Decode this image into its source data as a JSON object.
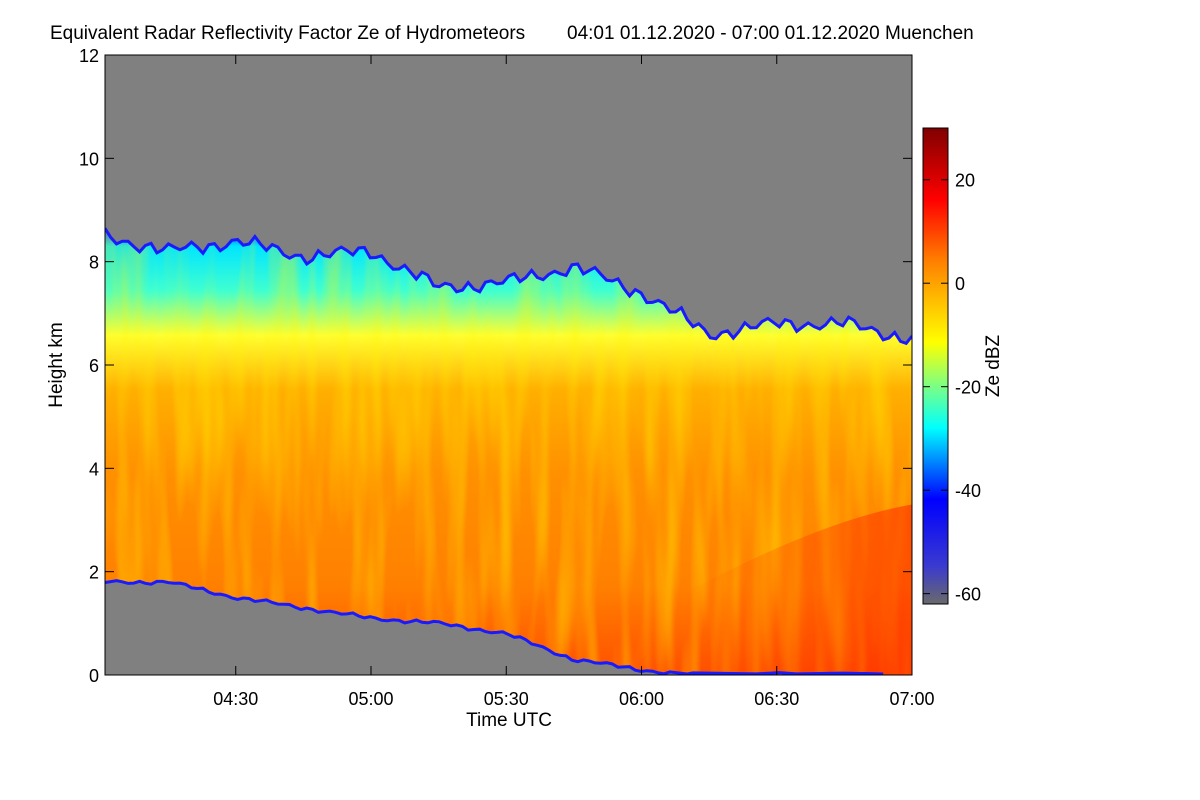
{
  "chart_data": {
    "type": "heatmap",
    "title": "Equivalent Radar Reflectivity Factor Ze of Hydrometeors",
    "subtitle": "04:01 01.12.2020 - 07:00 01.12.2020 Muenchen",
    "xlabel": "Time UTC",
    "ylabel": "Height km",
    "colorbar_label": "Ze dBZ",
    "xlim": [
      "04:01",
      "07:00"
    ],
    "ylim": [
      0,
      12
    ],
    "xticks": [
      "04:30",
      "05:00",
      "05:30",
      "06:00",
      "06:30",
      "07:00"
    ],
    "yticks": [
      "0",
      "2",
      "4",
      "6",
      "8",
      "10",
      "12"
    ],
    "colorbar_range": [
      -62,
      30
    ],
    "colorbar_ticks": [
      "-60",
      "-40",
      "-20",
      "0",
      "20"
    ],
    "grid": false,
    "background_color": "#808080",
    "colormap": [
      "#6a6a6a",
      "#0000ff",
      "#00ffff",
      "#ffff00",
      "#ff8000",
      "#ff0000",
      "#800000"
    ],
    "cloud_top_km": [
      {
        "t": "04:01",
        "h": 8.5
      },
      {
        "t": "04:15",
        "h": 8.2
      },
      {
        "t": "04:30",
        "h": 8.4
      },
      {
        "t": "04:45",
        "h": 8.1
      },
      {
        "t": "05:00",
        "h": 8.2
      },
      {
        "t": "05:15",
        "h": 7.5
      },
      {
        "t": "05:30",
        "h": 7.6
      },
      {
        "t": "05:45",
        "h": 7.9
      },
      {
        "t": "06:00",
        "h": 7.4
      },
      {
        "t": "06:15",
        "h": 6.6
      },
      {
        "t": "06:30",
        "h": 6.8
      },
      {
        "t": "06:45",
        "h": 6.8
      },
      {
        "t": "07:00",
        "h": 6.5
      }
    ],
    "cloud_base_km": [
      {
        "t": "04:01",
        "h": 1.8
      },
      {
        "t": "04:15",
        "h": 1.8
      },
      {
        "t": "04:30",
        "h": 1.5
      },
      {
        "t": "04:45",
        "h": 1.3
      },
      {
        "t": "05:00",
        "h": 1.1
      },
      {
        "t": "05:15",
        "h": 1.0
      },
      {
        "t": "05:30",
        "h": 0.8
      },
      {
        "t": "05:45",
        "h": 0.3
      },
      {
        "t": "06:00",
        "h": 0.1
      },
      {
        "t": "06:10",
        "h": 0.0
      },
      {
        "t": "07:00",
        "h": 0.0
      }
    ],
    "reflectivity_bands_dbz": [
      {
        "h": 7.5,
        "dbz": -22
      },
      {
        "h": 6.5,
        "dbz": -12
      },
      {
        "h": 5.5,
        "dbz": -4
      },
      {
        "h": 4.5,
        "dbz": 4
      },
      {
        "h": 3.0,
        "dbz": 8
      },
      {
        "h": 1.5,
        "dbz": 10
      },
      {
        "h": 0.5,
        "dbz": 16
      }
    ]
  }
}
